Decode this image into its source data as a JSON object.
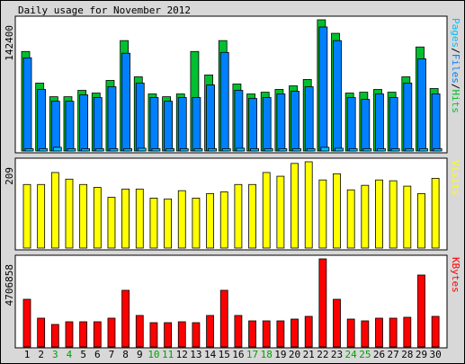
{
  "title": "Daily usage for November 2012",
  "chart_data": [
    {
      "type": "bar",
      "legend_separator": "/",
      "ylim": [
        0,
        142400
      ],
      "yticks": [
        142400
      ],
      "series": [
        {
          "name": "Pages",
          "color": "#00c0ff",
          "values": [
            2500,
            2500,
            4000,
            2500,
            2500,
            2500,
            2500,
            2500,
            3000,
            2500,
            2500,
            2500,
            2500,
            2500,
            2500,
            3000,
            2500,
            2500,
            2500,
            2500,
            2500,
            4000,
            3000,
            2500,
            2500,
            2500,
            2500,
            2500,
            2500,
            2500
          ]
        },
        {
          "name": "Files",
          "color": "#0080ff",
          "values": [
            101100,
            66800,
            54000,
            54000,
            60900,
            58000,
            69700,
            106100,
            73700,
            58000,
            54000,
            58000,
            58000,
            71700,
            107000,
            65800,
            57000,
            58000,
            61900,
            64800,
            69700,
            134600,
            119800,
            58000,
            56000,
            61900,
            58000,
            73700,
            100100,
            61900
          ]
        },
        {
          "name": "Hits",
          "color": "#00c030",
          "values": [
            108000,
            73700,
            58900,
            58900,
            65800,
            62900,
            76600,
            119800,
            80500,
            61900,
            58900,
            61900,
            108000,
            82500,
            119800,
            72700,
            61900,
            63800,
            66800,
            70700,
            77600,
            142400,
            127700,
            62900,
            63800,
            66800,
            63800,
            80500,
            112900,
            67800
          ]
        }
      ]
    },
    {
      "type": "bar",
      "ylim": [
        0,
        209
      ],
      "yticks": [
        209
      ],
      "series": [
        {
          "name": "Visits",
          "color": "#ffff00",
          "values": [
            154,
            154,
            183,
            167,
            154,
            147,
            123,
            143,
            143,
            121,
            119,
            139,
            121,
            132,
            136,
            154,
            154,
            183,
            174,
            205,
            209,
            165,
            180,
            141,
            152,
            165,
            163,
            150,
            132,
            169
          ]
        }
      ]
    },
    {
      "type": "bar",
      "ylim": [
        0,
        4706858
      ],
      "yticks": [
        4706858
      ],
      "categories": [
        "1",
        "2",
        "3",
        "4",
        "5",
        "6",
        "7",
        "8",
        "9",
        "10",
        "11",
        "12",
        "13",
        "14",
        "15",
        "16",
        "17",
        "18",
        "19",
        "20",
        "21",
        "22",
        "23",
        "24",
        "25",
        "26",
        "27",
        "28",
        "29",
        "30"
      ],
      "category_colors": [
        "#000000",
        "#000000",
        "#00a000",
        "#00a000",
        "#000000",
        "#000000",
        "#000000",
        "#000000",
        "#000000",
        "#00a000",
        "#00a000",
        "#000000",
        "#000000",
        "#000000",
        "#000000",
        "#000000",
        "#00a000",
        "#00a000",
        "#000000",
        "#000000",
        "#000000",
        "#000000",
        "#000000",
        "#00a000",
        "#00a000",
        "#000000",
        "#000000",
        "#000000",
        "#000000",
        "#000000"
      ],
      "series": [
        {
          "name": "KBytes",
          "color": "#ff0000",
          "values": [
            2545500,
            1536900,
            1200700,
            1344800,
            1344800,
            1344800,
            1536900,
            3025800,
            1681000,
            1296800,
            1296800,
            1344800,
            1296800,
            1681000,
            3025800,
            1681000,
            1392800,
            1392800,
            1392800,
            1488900,
            1633000,
            4706858,
            2545500,
            1488900,
            1392800,
            1536900,
            1536900,
            1585000,
            3842300,
            1633000
          ]
        }
      ]
    }
  ]
}
